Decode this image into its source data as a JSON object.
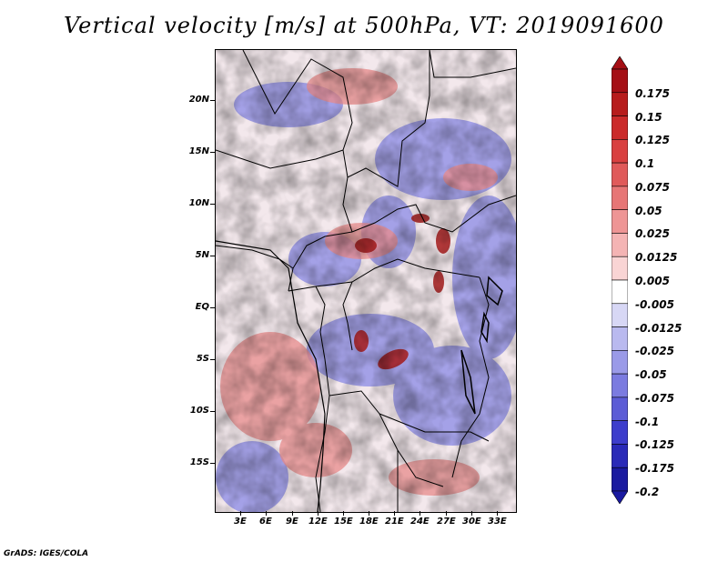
{
  "title": "Vertical velocity [m/s] at 500hPa, VT: 2019091600",
  "credit": "GrADS: IGES/COLA",
  "y_axis": {
    "ticks": [
      "20N",
      "15N",
      "10N",
      "5N",
      "EQ",
      "5S",
      "10S",
      "15S"
    ]
  },
  "x_axis": {
    "ticks": [
      "3E",
      "6E",
      "9E",
      "12E",
      "15E",
      "18E",
      "21E",
      "24E",
      "27E",
      "30E",
      "33E"
    ]
  },
  "colorbar": {
    "labels": [
      "0.175",
      "0.15",
      "0.125",
      "0.1",
      "0.075",
      "0.05",
      "0.025",
      "0.0125",
      "0.005",
      "-0.005",
      "-0.0125",
      "-0.025",
      "-0.05",
      "-0.075",
      "-0.1",
      "-0.125",
      "-0.175",
      "-0.2"
    ],
    "colors": [
      "#a50f15",
      "#b71c1c",
      "#cb2a2a",
      "#d94040",
      "#e05a5a",
      "#e77676",
      "#ee9595",
      "#f4b4b4",
      "#f9d4d4",
      "#ffffff",
      "#d7d7f5",
      "#b9b9ef",
      "#9a9ae8",
      "#7b7be0",
      "#5c5cd6",
      "#3d3dcc",
      "#2a2ab8",
      "#1a1aa0"
    ]
  }
}
